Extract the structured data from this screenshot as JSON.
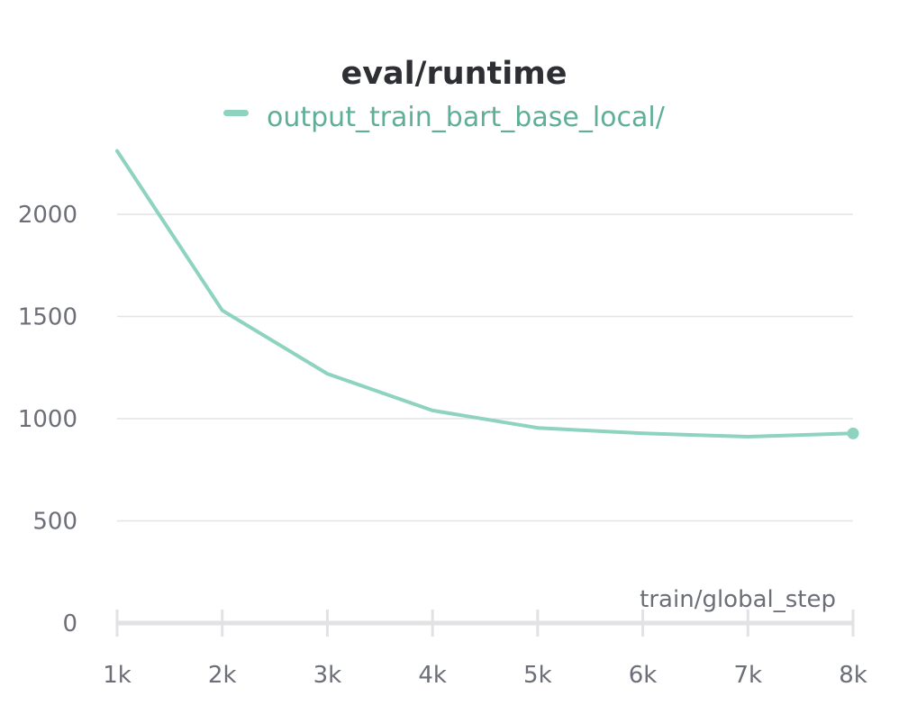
{
  "chart_data": {
    "type": "line",
    "title": "eval/runtime",
    "xlabel": "train/global_step",
    "ylabel": "",
    "x_tick_labels": [
      "1k",
      "2k",
      "3k",
      "4k",
      "5k",
      "6k",
      "7k",
      "8k"
    ],
    "y_tick_labels": [
      "0",
      "500",
      "1000",
      "1500",
      "2000"
    ],
    "y_ticks": [
      0,
      500,
      1000,
      1500,
      2000
    ],
    "x_ticks": [
      1000,
      2000,
      3000,
      4000,
      5000,
      6000,
      7000,
      8000
    ],
    "xlim": [
      1000,
      8000
    ],
    "ylim": [
      0,
      2300
    ],
    "grid": true,
    "legend_position": "top-center",
    "series": [
      {
        "name": "output_train_bart_base_local/",
        "color": "#8dd3c0",
        "x": [
          1000,
          2000,
          3000,
          4000,
          5000,
          6000,
          7000,
          8000
        ],
        "y": [
          2310,
          1530,
          1220,
          1040,
          955,
          928,
          912,
          928
        ]
      }
    ]
  }
}
